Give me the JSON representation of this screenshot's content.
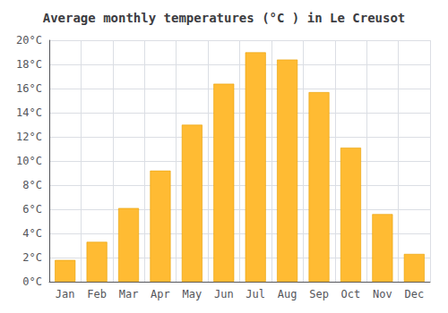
{
  "chart_data": {
    "type": "bar",
    "title": "Average monthly temperatures (°C ) in Le Creusot",
    "categories": [
      "Jan",
      "Feb",
      "Mar",
      "Apr",
      "May",
      "Jun",
      "Jul",
      "Aug",
      "Sep",
      "Oct",
      "Nov",
      "Dec"
    ],
    "values": [
      1.8,
      3.3,
      6.1,
      9.2,
      13.0,
      16.4,
      19.0,
      18.4,
      15.7,
      11.1,
      5.6,
      2.3
    ],
    "color": "#FFBB33",
    "ylim": [
      0,
      20
    ],
    "yticks": [
      {
        "value": 0,
        "label": "0°C"
      },
      {
        "value": 2,
        "label": "2°C"
      },
      {
        "value": 4,
        "label": "4°C"
      },
      {
        "value": 6,
        "label": "6°C"
      },
      {
        "value": 8,
        "label": "8°C"
      },
      {
        "value": 10,
        "label": "10°C"
      },
      {
        "value": 12,
        "label": "12°C"
      },
      {
        "value": 14,
        "label": "14°C"
      },
      {
        "value": 16,
        "label": "16°C"
      },
      {
        "value": 18,
        "label": "18°C"
      },
      {
        "value": 20,
        "label": "20°C"
      }
    ],
    "grid": true
  }
}
